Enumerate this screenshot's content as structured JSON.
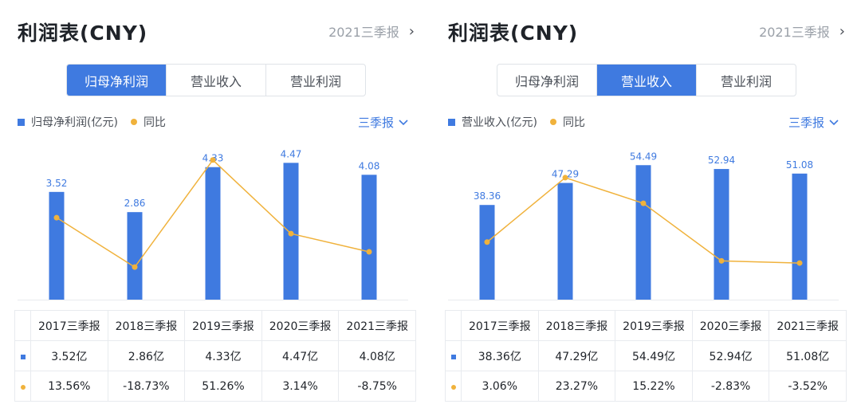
{
  "colors": {
    "bar": "#3f7ae0",
    "line": "#f0b23c",
    "positive": "#e0454a",
    "negative": "#2aa15b"
  },
  "panels": [
    {
      "title": "利润表(CNY)",
      "period_link": "2021三季报",
      "tabs": [
        "归母净利润",
        "营业收入",
        "营业利润"
      ],
      "active_tab": 0,
      "legend": {
        "bar_label": "归母净利润(亿元)",
        "line_label": "同比"
      },
      "frequency_label": "三季报",
      "chart_data": {
        "type": "bar",
        "categories": [
          "2017三季报",
          "2018三季报",
          "2019三季报",
          "2020三季报",
          "2021三季报"
        ],
        "series": [
          {
            "name": "归母净利润(亿元)",
            "type": "bar",
            "values": [
              3.52,
              2.86,
              4.33,
              4.47,
              4.08
            ]
          },
          {
            "name": "同比",
            "type": "line",
            "values": [
              13.56,
              -18.73,
              51.26,
              3.14,
              -8.75
            ]
          }
        ],
        "bar_labels": [
          "3.52",
          "2.86",
          "4.33",
          "4.47",
          "4.08"
        ],
        "bar_ylim": [
          0,
          5
        ],
        "line_ylim": [
          -40,
          60
        ]
      },
      "table": {
        "headers": [
          "2017三季报",
          "2018三季报",
          "2019三季报",
          "2020三季报",
          "2021三季报"
        ],
        "values": [
          "3.52亿",
          "2.86亿",
          "4.33亿",
          "4.47亿",
          "4.08亿"
        ],
        "growth": [
          "13.56%",
          "-18.73%",
          "51.26%",
          "3.14%",
          "-8.75%"
        ]
      }
    },
    {
      "title": "利润表(CNY)",
      "period_link": "2021三季报",
      "tabs": [
        "归母净利润",
        "营业收入",
        "营业利润"
      ],
      "active_tab": 1,
      "legend": {
        "bar_label": "营业收入(亿元)",
        "line_label": "同比"
      },
      "frequency_label": "三季报",
      "chart_data": {
        "type": "bar",
        "categories": [
          "2017三季报",
          "2018三季报",
          "2019三季报",
          "2020三季报",
          "2021三季报"
        ],
        "series": [
          {
            "name": "营业收入(亿元)",
            "type": "bar",
            "values": [
              38.36,
              47.29,
              54.49,
              52.94,
              51.08
            ]
          },
          {
            "name": "同比",
            "type": "line",
            "values": [
              3.06,
              23.27,
              15.22,
              -2.83,
              -3.52
            ]
          }
        ],
        "bar_labels": [
          "38.36",
          "47.29",
          "54.49",
          "52.94",
          "51.08"
        ],
        "bar_ylim": [
          0,
          62
        ],
        "line_ylim": [
          -15,
          33
        ]
      },
      "table": {
        "headers": [
          "2017三季报",
          "2018三季报",
          "2019三季报",
          "2020三季报",
          "2021三季报"
        ],
        "values": [
          "38.36亿",
          "47.29亿",
          "54.49亿",
          "52.94亿",
          "51.08亿"
        ],
        "growth": [
          "3.06%",
          "23.27%",
          "15.22%",
          "-2.83%",
          "-3.52%"
        ]
      }
    }
  ]
}
